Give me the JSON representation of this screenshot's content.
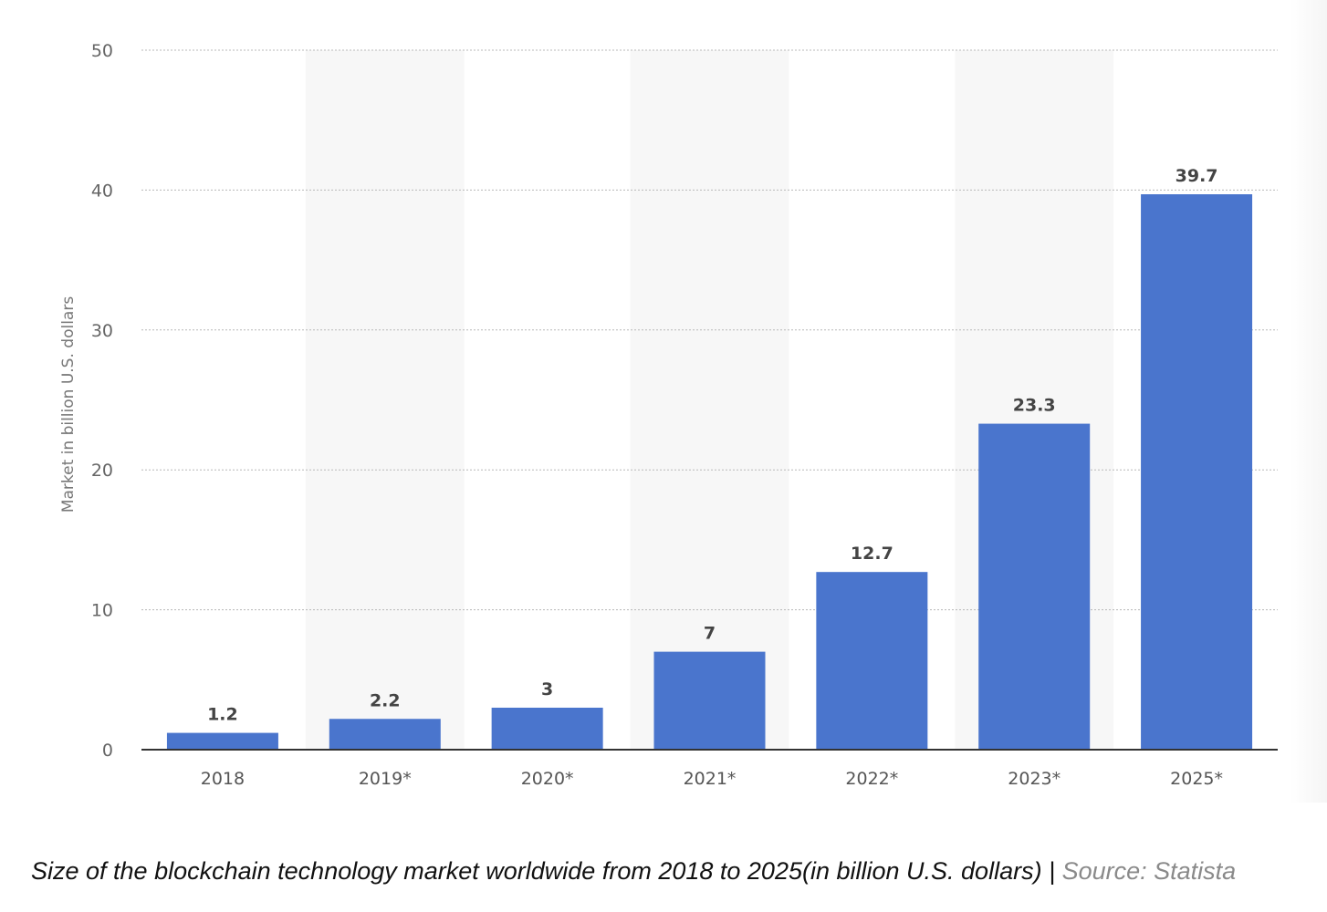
{
  "chart_data": {
    "type": "bar",
    "categories": [
      "2018",
      "2019*",
      "2020*",
      "2021*",
      "2022*",
      "2023*",
      "2025*"
    ],
    "values": [
      1.2,
      2.2,
      3,
      7,
      12.7,
      23.3,
      39.7
    ],
    "value_labels": [
      "1.2",
      "2.2",
      "3",
      "7",
      "12.7",
      "23.3",
      "39.7"
    ],
    "ylabel": "Market in billion U.S. dollars",
    "ylim": [
      0,
      50
    ],
    "yticks": [
      0,
      10,
      20,
      30,
      40,
      50
    ],
    "grid": true,
    "legend": "none",
    "bar_color": "#4a75cd",
    "band_color": "#f7f7f7"
  },
  "caption": {
    "text": "Size of the blockchain technology market worldwide from 2018 to 2025(in billion U.S. dollars) | ",
    "source": "Source: Statista"
  }
}
